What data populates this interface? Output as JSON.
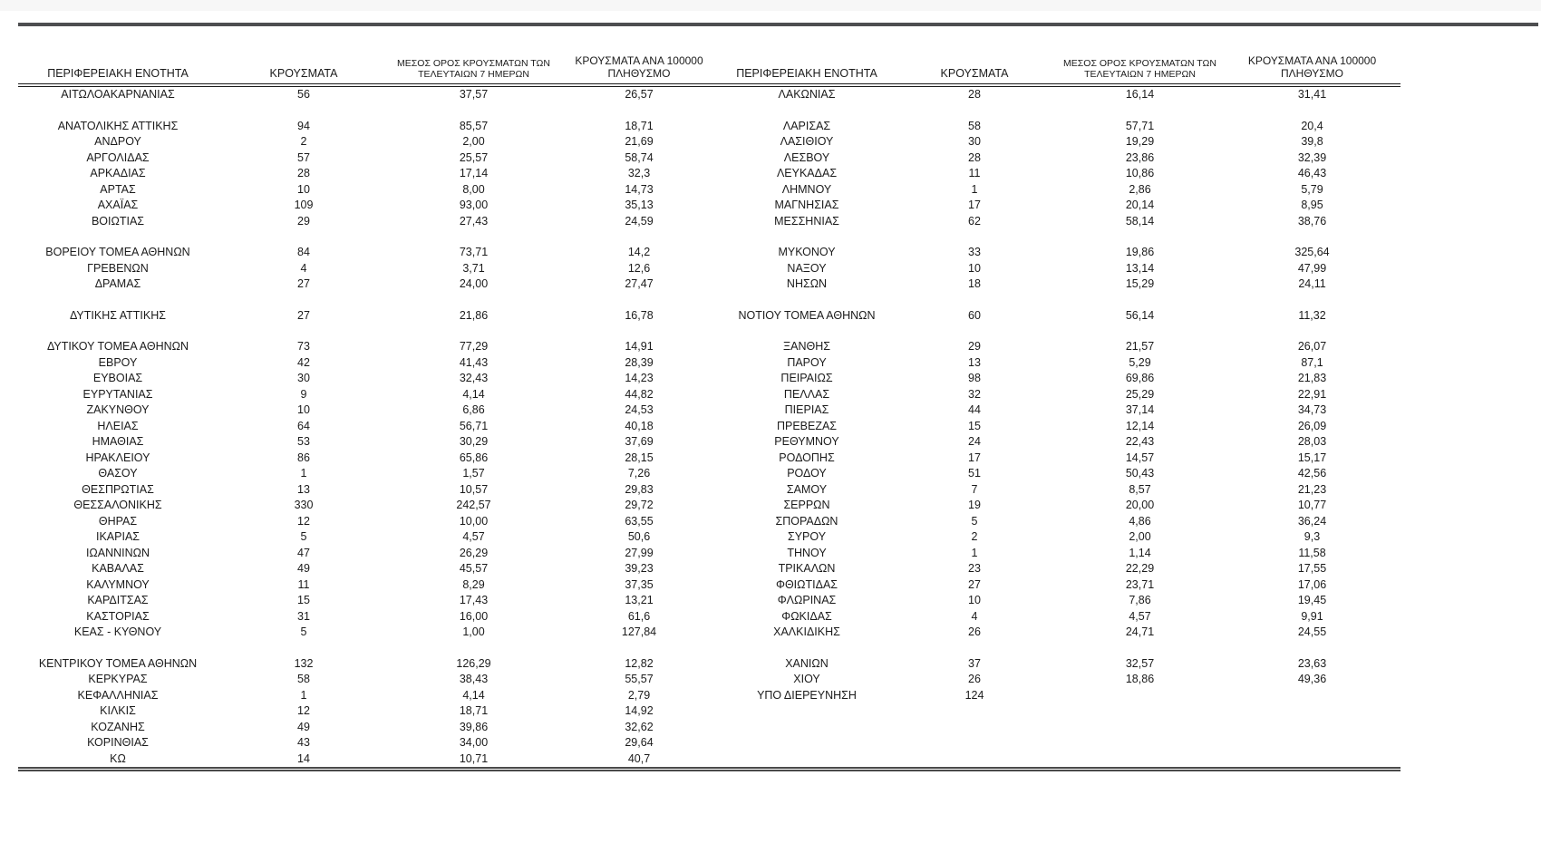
{
  "page": {
    "background": "#ffffff",
    "top_strip_color": "#f7f7f7",
    "top_rule_color": "#4d4e50",
    "header_border_color": "#1a1a1a",
    "bottom_border_color": "#4a4a4a"
  },
  "table": {
    "headers": {
      "region": "ΠΕΡΙΦΕΡΕΙΑΚΗ ΕΝΟΤΗΤΑ",
      "cases": "ΚΡΟΥΣΜΑΤΑ",
      "avg7_line1": "ΜΕΣΟΣ ΟΡΟΣ ΚΡΟΥΣΜΑΤΩΝ ΤΩΝ",
      "avg7_line2": "ΤΕΛΕΥΤΑΙΩΝ 7 ΗΜΕΡΩΝ",
      "per100k_line1": "ΚΡΟΥΣΜΑΤΑ ΑΝΑ 100000",
      "per100k_line2": "ΠΛΗΘΥΣΜΟ"
    },
    "rows": [
      {
        "l": [
          "ΑΙΤΩΛΟΑΚΑΡΝΑΝΙΑΣ",
          "56",
          "37,57",
          "26,57"
        ],
        "r": [
          "ΛΑΚΩΝΙΑΣ",
          "28",
          "16,14",
          "31,41"
        ]
      },
      null,
      {
        "l": [
          "ΑΝΑΤΟΛΙΚΗΣ ΑΤΤΙΚΗΣ",
          "94",
          "85,57",
          "18,71"
        ],
        "r": [
          "ΛΑΡΙΣΑΣ",
          "58",
          "57,71",
          "20,4"
        ]
      },
      {
        "l": [
          "ΑΝΔΡΟΥ",
          "2",
          "2,00",
          "21,69"
        ],
        "r": [
          "ΛΑΣΙΘΙΟΥ",
          "30",
          "19,29",
          "39,8"
        ]
      },
      {
        "l": [
          "ΑΡΓΟΛΙΔΑΣ",
          "57",
          "25,57",
          "58,74"
        ],
        "r": [
          "ΛΕΣΒΟΥ",
          "28",
          "23,86",
          "32,39"
        ]
      },
      {
        "l": [
          "ΑΡΚΑΔΙΑΣ",
          "28",
          "17,14",
          "32,3"
        ],
        "r": [
          "ΛΕΥΚΑΔΑΣ",
          "11",
          "10,86",
          "46,43"
        ]
      },
      {
        "l": [
          "ΑΡΤΑΣ",
          "10",
          "8,00",
          "14,73"
        ],
        "r": [
          "ΛΗΜΝΟΥ",
          "1",
          "2,86",
          "5,79"
        ]
      },
      {
        "l": [
          "ΑΧΑΪΑΣ",
          "109",
          "93,00",
          "35,13"
        ],
        "r": [
          "ΜΑΓΝΗΣΙΑΣ",
          "17",
          "20,14",
          "8,95"
        ]
      },
      {
        "l": [
          "ΒΟΙΩΤΙΑΣ",
          "29",
          "27,43",
          "24,59"
        ],
        "r": [
          "ΜΕΣΣΗΝΙΑΣ",
          "62",
          "58,14",
          "38,76"
        ]
      },
      null,
      {
        "l": [
          "ΒΟΡΕΙΟΥ ΤΟΜΕΑ ΑΘΗΝΩΝ",
          "84",
          "73,71",
          "14,2"
        ],
        "r": [
          "ΜΥΚΟΝΟΥ",
          "33",
          "19,86",
          "325,64"
        ]
      },
      {
        "l": [
          "ΓΡΕΒΕΝΩΝ",
          "4",
          "3,71",
          "12,6"
        ],
        "r": [
          "ΝΑΞΟΥ",
          "10",
          "13,14",
          "47,99"
        ]
      },
      {
        "l": [
          "ΔΡΑΜΑΣ",
          "27",
          "24,00",
          "27,47"
        ],
        "r": [
          "ΝΗΣΩΝ",
          "18",
          "15,29",
          "24,11"
        ]
      },
      null,
      {
        "l": [
          "ΔΥΤΙΚΗΣ ΑΤΤΙΚΗΣ",
          "27",
          "21,86",
          "16,78"
        ],
        "r": [
          "ΝΟΤΙΟΥ ΤΟΜΕΑ ΑΘΗΝΩΝ",
          "60",
          "56,14",
          "11,32"
        ]
      },
      null,
      {
        "l": [
          "ΔΥΤΙΚΟΥ ΤΟΜΕΑ ΑΘΗΝΩΝ",
          "73",
          "77,29",
          "14,91"
        ],
        "r": [
          "ΞΑΝΘΗΣ",
          "29",
          "21,57",
          "26,07"
        ]
      },
      {
        "l": [
          "ΕΒΡΟΥ",
          "42",
          "41,43",
          "28,39"
        ],
        "r": [
          "ΠΑΡΟΥ",
          "13",
          "5,29",
          "87,1"
        ]
      },
      {
        "l": [
          "ΕΥΒΟΙΑΣ",
          "30",
          "32,43",
          "14,23"
        ],
        "r": [
          "ΠΕΙΡΑΙΩΣ",
          "98",
          "69,86",
          "21,83"
        ]
      },
      {
        "l": [
          "ΕΥΡΥΤΑΝΙΑΣ",
          "9",
          "4,14",
          "44,82"
        ],
        "r": [
          "ΠΕΛΛΑΣ",
          "32",
          "25,29",
          "22,91"
        ]
      },
      {
        "l": [
          "ΖΑΚΥΝΘΟΥ",
          "10",
          "6,86",
          "24,53"
        ],
        "r": [
          "ΠΙΕΡΙΑΣ",
          "44",
          "37,14",
          "34,73"
        ]
      },
      {
        "l": [
          "ΗΛΕΙΑΣ",
          "64",
          "56,71",
          "40,18"
        ],
        "r": [
          "ΠΡΕΒΕΖΑΣ",
          "15",
          "12,14",
          "26,09"
        ]
      },
      {
        "l": [
          "ΗΜΑΘΙΑΣ",
          "53",
          "30,29",
          "37,69"
        ],
        "r": [
          "ΡΕΘΥΜΝΟΥ",
          "24",
          "22,43",
          "28,03"
        ]
      },
      {
        "l": [
          "ΗΡΑΚΛΕΙΟΥ",
          "86",
          "65,86",
          "28,15"
        ],
        "r": [
          "ΡΟΔΟΠΗΣ",
          "17",
          "14,57",
          "15,17"
        ]
      },
      {
        "l": [
          "ΘΑΣΟΥ",
          "1",
          "1,57",
          "7,26"
        ],
        "r": [
          "ΡΟΔΟΥ",
          "51",
          "50,43",
          "42,56"
        ]
      },
      {
        "l": [
          "ΘΕΣΠΡΩΤΙΑΣ",
          "13",
          "10,57",
          "29,83"
        ],
        "r": [
          "ΣΑΜΟΥ",
          "7",
          "8,57",
          "21,23"
        ]
      },
      {
        "l": [
          "ΘΕΣΣΑΛΟΝΙΚΗΣ",
          "330",
          "242,57",
          "29,72"
        ],
        "r": [
          "ΣΕΡΡΩΝ",
          "19",
          "20,00",
          "10,77"
        ]
      },
      {
        "l": [
          "ΘΗΡΑΣ",
          "12",
          "10,00",
          "63,55"
        ],
        "r": [
          "ΣΠΟΡΑΔΩΝ",
          "5",
          "4,86",
          "36,24"
        ]
      },
      {
        "l": [
          "ΙΚΑΡΙΑΣ",
          "5",
          "4,57",
          "50,6"
        ],
        "r": [
          "ΣΥΡΟΥ",
          "2",
          "2,00",
          "9,3"
        ]
      },
      {
        "l": [
          "ΙΩΑΝΝΙΝΩΝ",
          "47",
          "26,29",
          "27,99"
        ],
        "r": [
          "ΤΗΝΟΥ",
          "1",
          "1,14",
          "11,58"
        ]
      },
      {
        "l": [
          "ΚΑΒΑΛΑΣ",
          "49",
          "45,57",
          "39,23"
        ],
        "r": [
          "ΤΡΙΚΑΛΩΝ",
          "23",
          "22,29",
          "17,55"
        ]
      },
      {
        "l": [
          "ΚΑΛΥΜΝΟΥ",
          "11",
          "8,29",
          "37,35"
        ],
        "r": [
          "ΦΘΙΩΤΙΔΑΣ",
          "27",
          "23,71",
          "17,06"
        ]
      },
      {
        "l": [
          "ΚΑΡΔΙΤΣΑΣ",
          "15",
          "17,43",
          "13,21"
        ],
        "r": [
          "ΦΛΩΡΙΝΑΣ",
          "10",
          "7,86",
          "19,45"
        ]
      },
      {
        "l": [
          "ΚΑΣΤΟΡΙΑΣ",
          "31",
          "16,00",
          "61,6"
        ],
        "r": [
          "ΦΩΚΙΔΑΣ",
          "4",
          "4,57",
          "9,91"
        ]
      },
      {
        "l": [
          "ΚΕΑΣ - ΚΥΘΝΟΥ",
          "5",
          "1,00",
          "127,84"
        ],
        "r": [
          "ΧΑΛΚΙΔΙΚΗΣ",
          "26",
          "24,71",
          "24,55"
        ]
      },
      null,
      {
        "l": [
          "ΚΕΝΤΡΙΚΟΥ ΤΟΜΕΑ ΑΘΗΝΩΝ",
          "132",
          "126,29",
          "12,82"
        ],
        "r": [
          "ΧΑΝΙΩΝ",
          "37",
          "32,57",
          "23,63"
        ]
      },
      {
        "l": [
          "ΚΕΡΚΥΡΑΣ",
          "58",
          "38,43",
          "55,57"
        ],
        "r": [
          "ΧΙΟΥ",
          "26",
          "18,86",
          "49,36"
        ]
      },
      {
        "l": [
          "ΚΕΦΑΛΛΗΝΙΑΣ",
          "1",
          "4,14",
          "2,79"
        ],
        "r": [
          "ΥΠΟ ΔΙΕΡΕΥΝΗΣΗ",
          "124",
          "",
          ""
        ]
      },
      {
        "l": [
          "ΚΙΛΚΙΣ",
          "12",
          "18,71",
          "14,92"
        ],
        "r": null
      },
      {
        "l": [
          "ΚΟΖΑΝΗΣ",
          "49",
          "39,86",
          "32,62"
        ],
        "r": null
      },
      {
        "l": [
          "ΚΟΡΙΝΘΙΑΣ",
          "43",
          "34,00",
          "29,64"
        ],
        "r": null
      },
      {
        "l": [
          "ΚΩ",
          "14",
          "10,71",
          "40,7"
        ],
        "r": null
      }
    ]
  }
}
